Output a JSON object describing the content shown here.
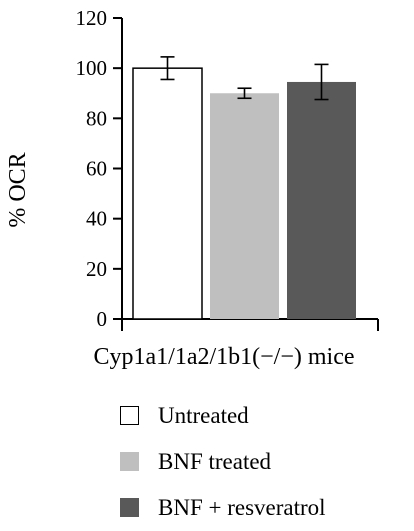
{
  "chart_data": {
    "type": "bar",
    "title": "",
    "xlabel": "Cyp1a1/1a2/1b1(−/−) mice",
    "ylabel": "% OCR",
    "ylim": [
      0,
      120
    ],
    "yticks": [
      0,
      20,
      40,
      60,
      80,
      100,
      120
    ],
    "grid": false,
    "legend_position": "bottom",
    "series": [
      {
        "name": "Untreated",
        "value": 100,
        "error": 4.5,
        "color": "#ffffff",
        "stroke": "#000000"
      },
      {
        "name": "BNF treated",
        "value": 90,
        "error": 2,
        "color": "#bfbfbf",
        "stroke": "#bfbfbf"
      },
      {
        "name": "BNF + resveratrol",
        "value": 94.5,
        "error": 7,
        "color": "#595959",
        "stroke": "#595959"
      }
    ]
  }
}
